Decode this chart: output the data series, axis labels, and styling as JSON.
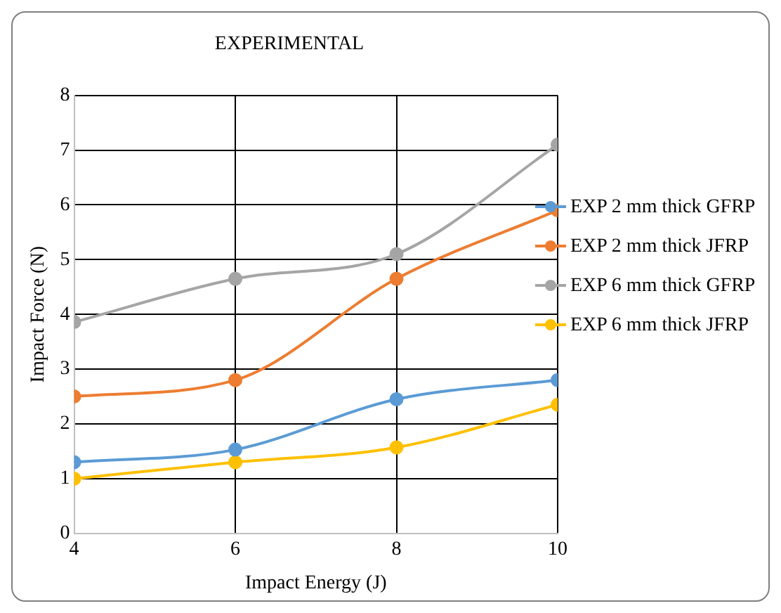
{
  "chart_data": {
    "type": "line",
    "title": "EXPERIMENTAL",
    "xlabel": "Impact Energy (J)",
    "ylabel": "Impact Force (N)",
    "x": [
      4,
      6,
      8,
      10
    ],
    "series": [
      {
        "name": "EXP 2 mm thick GFRP",
        "color": "#5b9bd5",
        "values": [
          1.3,
          1.53,
          2.45,
          2.8
        ]
      },
      {
        "name": "EXP 2 mm thick JFRP",
        "color": "#ed7d31",
        "values": [
          2.5,
          2.8,
          4.65,
          5.9
        ]
      },
      {
        "name": "EXP 6 mm thick GFRP",
        "color": "#a5a5a5",
        "values": [
          3.86,
          4.65,
          5.1,
          7.1
        ]
      },
      {
        "name": "EXP 6 mm thick JFRP",
        "color": "#ffc000",
        "values": [
          1.0,
          1.3,
          1.57,
          2.35
        ]
      }
    ],
    "xlim": [
      4,
      10
    ],
    "xticks": [
      4,
      6,
      8,
      10
    ],
    "ylim": [
      0,
      8
    ],
    "yticks": [
      0,
      1,
      2,
      3,
      4,
      5,
      6,
      7,
      8
    ],
    "grid": true,
    "legend": "right",
    "marker": "circle",
    "line_style": "solid"
  }
}
